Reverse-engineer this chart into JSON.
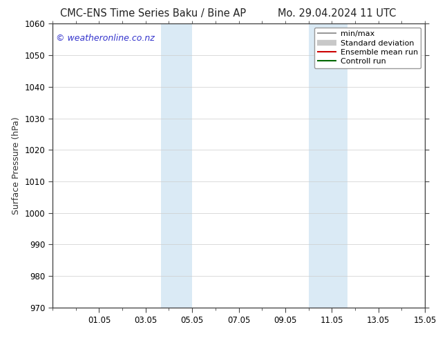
{
  "title_left": "CMC-ENS Time Series Baku / Bine AP",
  "title_right": "Mo. 29.04.2024 11 UTC",
  "ylabel": "Surface Pressure (hPa)",
  "ylim": [
    970,
    1060
  ],
  "yticks": [
    970,
    980,
    990,
    1000,
    1010,
    1020,
    1030,
    1040,
    1050,
    1060
  ],
  "xlim": [
    0,
    16
  ],
  "xtick_labels": [
    "01.05",
    "03.05",
    "05.05",
    "07.05",
    "09.05",
    "11.05",
    "13.05",
    "15.05"
  ],
  "xtick_positions": [
    2,
    4,
    6,
    8,
    10,
    12,
    14,
    16
  ],
  "background_color": "#ffffff",
  "plot_bg_color": "#ffffff",
  "shaded_regions": [
    {
      "x_start": 4.667,
      "x_end": 6.0,
      "color": "#daeaf5"
    },
    {
      "x_start": 11.0,
      "x_end": 12.667,
      "color": "#daeaf5"
    }
  ],
  "minor_xtick_positions": [
    0,
    1,
    2,
    3,
    4,
    5,
    6,
    7,
    8,
    9,
    10,
    11,
    12,
    13,
    14,
    15,
    16
  ],
  "watermark_text": "© weatheronline.co.nz",
  "watermark_color": "#3333cc",
  "legend_entries": [
    {
      "label": "min/max",
      "color": "#999999",
      "lw": 1.5,
      "style": "line"
    },
    {
      "label": "Standard deviation",
      "color": "#c8c8c8",
      "lw": 6,
      "style": "line"
    },
    {
      "label": "Ensemble mean run",
      "color": "#cc0000",
      "lw": 1.5,
      "style": "line"
    },
    {
      "label": "Controll run",
      "color": "#006600",
      "lw": 1.5,
      "style": "line"
    }
  ],
  "font_size_title": 10.5,
  "font_size_axis": 9,
  "font_size_ticks": 8.5,
  "font_size_legend": 8,
  "font_size_watermark": 9,
  "tick_color": "#444444",
  "spine_color": "#444444"
}
